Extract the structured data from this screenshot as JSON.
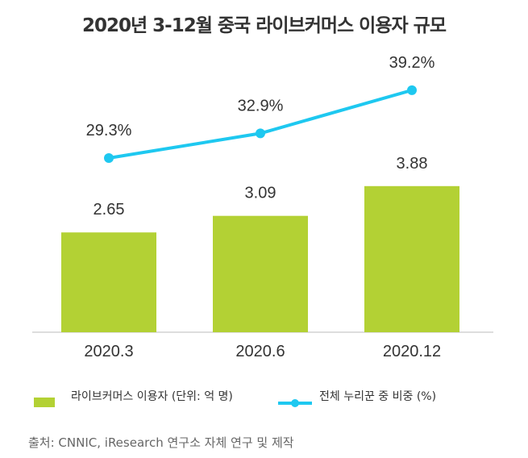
{
  "chart_data": {
    "type": "bar+line",
    "title": "2020년 3-12월 중국 라이브커머스 이용자 규모",
    "categories": [
      "2020.3",
      "2020.6",
      "2020.12"
    ],
    "series": [
      {
        "name": "라이브커머스 이용자 (단위: 억 명)",
        "type": "bar",
        "values": [
          2.65,
          3.09,
          3.88
        ],
        "labels": [
          "2.65",
          "3.09",
          "3.88"
        ],
        "color": "#b3d134"
      },
      {
        "name": "전체 누리꾼 중 비중 (%)",
        "type": "line",
        "values": [
          29.3,
          32.9,
          39.2
        ],
        "labels": [
          "29.3%",
          "32.9%",
          "39.2%"
        ],
        "color": "#1ec8f0"
      }
    ],
    "grid": false,
    "legend_position": "bottom-left"
  },
  "source": "출처: CNNIC, iResearch 연구소 자체 연구 및 제작"
}
